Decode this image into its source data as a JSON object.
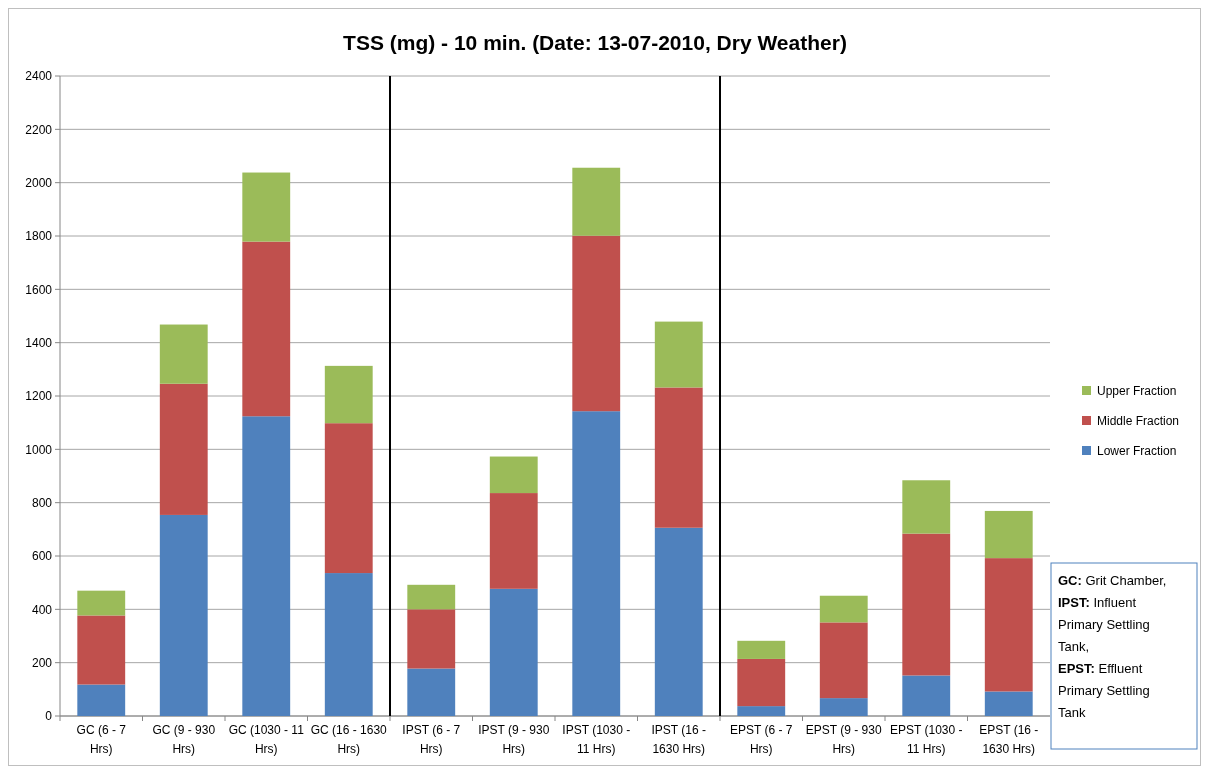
{
  "chart_data": {
    "type": "bar",
    "title": "TSS (mg) - 10 min. (Date: 13-07-2010, Dry Weather)",
    "stacked": true,
    "categories": [
      "GC (6 - 7 Hrs)",
      "GC (9 - 930 Hrs)",
      "GC (1030 - 11 Hrs)",
      "GC (16 - 1630 Hrs)",
      "IPST (6 - 7 Hrs)",
      "IPST (9 - 930 Hrs)",
      "IPST (1030 - 11 Hrs)",
      "IPST (16 - 1630 Hrs)",
      "EPST (6 - 7 Hrs)",
      "EPST (9 - 930 Hrs)",
      "EPST (1030 - 11 Hrs)",
      "EPST (16 - 1630 Hrs)"
    ],
    "series": [
      {
        "name": "Lower Fraction",
        "color": "#4f81bd",
        "values": [
          118,
          754,
          1124,
          536,
          178,
          477,
          1143,
          706,
          37,
          67,
          152,
          92
        ]
      },
      {
        "name": "Middle Fraction",
        "color": "#c0504d",
        "values": [
          259,
          492,
          655,
          562,
          222,
          359,
          658,
          526,
          177,
          284,
          532,
          500
        ]
      },
      {
        "name": "Upper Fraction",
        "color": "#9bbb59",
        "values": [
          93,
          222,
          259,
          215,
          92,
          137,
          255,
          247,
          68,
          100,
          200,
          177
        ]
      }
    ],
    "ylim": [
      0,
      2400
    ],
    "yticks": [
      0,
      200,
      400,
      600,
      800,
      1000,
      1200,
      1400,
      1600,
      1800,
      2000,
      2200,
      2400
    ],
    "grid": "y",
    "legend": "right",
    "annotations": [
      "GC: Grit Chamber,",
      "IPST: Influent Primary Settling Tank,",
      "EPST: Effluent Primary Settling Tank"
    ]
  }
}
